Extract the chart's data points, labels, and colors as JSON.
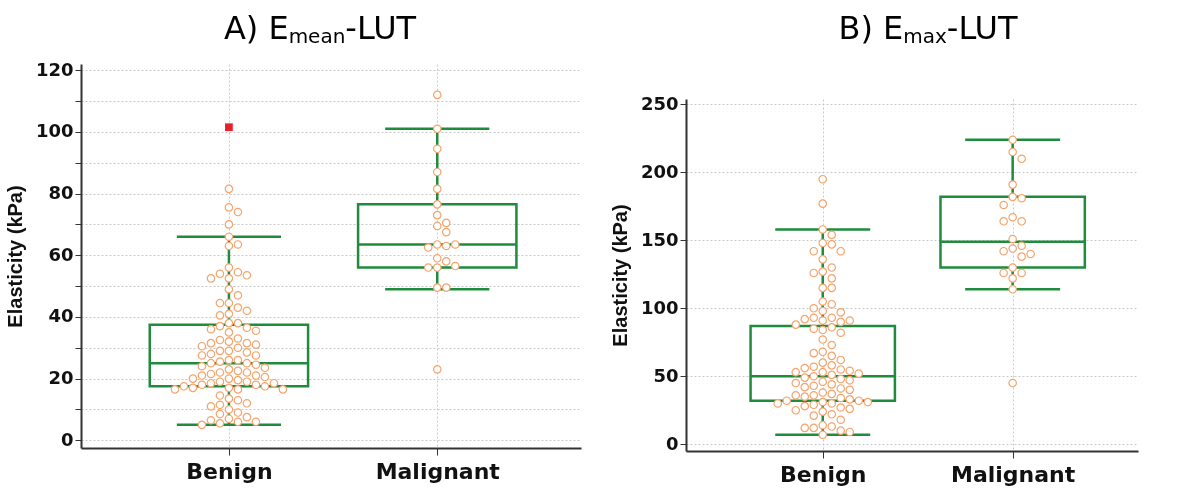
{
  "chart_data": [
    {
      "type": "box",
      "title": "A) E$_{mean}$-LUT",
      "ylabel": "Elasticity (kPa)",
      "categories": [
        "Benign",
        "Malignant"
      ],
      "ylim": [
        -2.5,
        122
      ],
      "yticks": [
        0,
        {
          "value": 10,
          "label": null
        },
        20,
        {
          "value": 30,
          "label": null
        },
        40,
        {
          "value": 50,
          "label": null
        },
        60,
        {
          "value": 70,
          "label": null
        },
        80,
        {
          "value": 90,
          "label": null
        },
        100,
        {
          "value": 110,
          "label": null
        },
        120
      ],
      "grid": true,
      "marker": "circle",
      "series": [
        {
          "type": "box",
          "color": "#1e8c3c",
          "boxes": [
            {
              "low": 5,
              "q1": 17.5,
              "median": 25,
              "q3": 37.5,
              "high": 66,
              "outliers": [
                101.5
              ]
            },
            {
              "low": 49,
              "q1": 56,
              "median": 63.5,
              "q3": 76.5,
              "high": 101
            }
          ]
        },
        {
          "type": "scatter",
          "color": "#f4a46c",
          "x": [
            "Benign",
            "Benign",
            "Benign",
            "Benign",
            "Benign",
            "Benign",
            "Benign",
            "Benign",
            "Benign",
            "Benign",
            "Benign",
            "Benign",
            "Benign",
            "Benign",
            "Benign",
            "Benign",
            "Benign",
            "Benign",
            "Benign",
            "Benign",
            "Benign",
            "Benign",
            "Benign",
            "Benign",
            "Benign",
            "Benign",
            "Benign",
            "Benign",
            "Benign",
            "Benign",
            "Benign",
            "Benign",
            "Benign",
            "Benign",
            "Benign",
            "Benign",
            "Benign",
            "Benign",
            "Benign",
            "Benign",
            "Benign",
            "Benign",
            "Benign",
            "Benign",
            "Benign",
            "Benign",
            "Benign",
            "Benign",
            "Benign",
            "Benign",
            "Benign",
            "Benign",
            "Benign",
            "Benign",
            "Benign",
            "Benign",
            "Benign",
            "Benign",
            "Benign",
            "Benign",
            "Benign",
            "Benign",
            "Benign",
            "Benign",
            "Benign",
            "Benign",
            "Benign",
            "Benign",
            "Benign",
            "Benign",
            "Benign",
            "Benign",
            "Benign",
            "Benign",
            "Benign",
            "Benign",
            "Benign",
            "Benign",
            "Benign",
            "Benign",
            "Benign",
            "Benign",
            "Benign",
            "Benign",
            "Benign",
            "Benign",
            "Benign",
            "Benign",
            "Benign",
            "Benign"
          ],
          "values": [
            81.5,
            75.5,
            74,
            70,
            66,
            63.5,
            63,
            56,
            54.5,
            54,
            53.5,
            52.5,
            52.5,
            49,
            47,
            44.5,
            44.5,
            43,
            42,
            41,
            40.5,
            38,
            38,
            37,
            36.5,
            36,
            35.5,
            35,
            33,
            32.5,
            32,
            31.5,
            31.5,
            31,
            30.5,
            30,
            29,
            29,
            28.5,
            28,
            27.5,
            27.5,
            26,
            26,
            25.5,
            25,
            25,
            24.5,
            24,
            23.5,
            23,
            22.5,
            22,
            22,
            21.5,
            21,
            21,
            20.5,
            20,
            20,
            19.5,
            19,
            19,
            18.5,
            18.5,
            18,
            18,
            17.5,
            17.5,
            17,
            17,
            16.5,
            16.5,
            16.5,
            14.5,
            13.5,
            13,
            12,
            11.5,
            11,
            10,
            9,
            8.5,
            7.5,
            7,
            6.5,
            6,
            6,
            5.5,
            5
          ]
        },
        {
          "type": "scatter",
          "color": "#f4a46c",
          "x": [
            "Malignant",
            "Malignant",
            "Malignant",
            "Malignant",
            "Malignant",
            "Malignant",
            "Malignant",
            "Malignant",
            "Malignant",
            "Malignant",
            "Malignant",
            "Malignant",
            "Malignant",
            "Malignant",
            "Malignant",
            "Malignant",
            "Malignant",
            "Malignant",
            "Malignant",
            "Malignant",
            "Malignant",
            "Malignant"
          ],
          "values": [
            112,
            101,
            94.5,
            87,
            81.5,
            76.5,
            73,
            70.5,
            69.5,
            67.5,
            63.5,
            63,
            62.5,
            63.5,
            59,
            58,
            56,
            56,
            56.5,
            49.5,
            49.5,
            23
          ]
        }
      ]
    },
    {
      "type": "box",
      "title": "B) E$_{max}$-LUT",
      "ylabel": "Elasticity (kPa)",
      "categories": [
        "Benign",
        "Malignant"
      ],
      "ylim": [
        -5,
        254
      ],
      "yticks": [
        0,
        50,
        100,
        150,
        200,
        250
      ],
      "grid": true,
      "marker": "circle",
      "series": [
        {
          "type": "box",
          "color": "#1e8c3c",
          "boxes": [
            {
              "low": 7,
              "q1": 32,
              "median": 50,
              "q3": 87,
              "high": 158
            },
            {
              "low": 114,
              "q1": 130,
              "median": 149,
              "q3": 182,
              "high": 224
            }
          ]
        },
        {
          "type": "scatter",
          "color": "#f4a46c",
          "x": [
            "Benign",
            "Benign",
            "Benign",
            "Benign",
            "Benign",
            "Benign",
            "Benign",
            "Benign",
            "Benign",
            "Benign",
            "Benign",
            "Benign",
            "Benign",
            "Benign",
            "Benign",
            "Benign",
            "Benign",
            "Benign",
            "Benign",
            "Benign",
            "Benign",
            "Benign",
            "Benign",
            "Benign",
            "Benign",
            "Benign",
            "Benign",
            "Benign",
            "Benign",
            "Benign",
            "Benign",
            "Benign",
            "Benign",
            "Benign",
            "Benign",
            "Benign",
            "Benign",
            "Benign",
            "Benign",
            "Benign",
            "Benign",
            "Benign",
            "Benign",
            "Benign",
            "Benign",
            "Benign",
            "Benign",
            "Benign",
            "Benign",
            "Benign",
            "Benign",
            "Benign",
            "Benign",
            "Benign",
            "Benign",
            "Benign",
            "Benign",
            "Benign",
            "Benign",
            "Benign",
            "Benign",
            "Benign",
            "Benign",
            "Benign",
            "Benign",
            "Benign",
            "Benign",
            "Benign",
            "Benign",
            "Benign",
            "Benign",
            "Benign",
            "Benign",
            "Benign",
            "Benign",
            "Benign",
            "Benign",
            "Benign",
            "Benign",
            "Benign",
            "Benign",
            "Benign",
            "Benign",
            "Benign",
            "Benign",
            "Benign",
            "Benign"
          ],
          "values": [
            195,
            177,
            158,
            154,
            148,
            147,
            142,
            142,
            136,
            130,
            127,
            126,
            122,
            115,
            115,
            105,
            103,
            100,
            98,
            97,
            93,
            93,
            92,
            91,
            91,
            90,
            88,
            86,
            85,
            84,
            82,
            77,
            73,
            68,
            67,
            65,
            62,
            60,
            58,
            57,
            56,
            55,
            54,
            53,
            53,
            52,
            51,
            50,
            49,
            48,
            47,
            46,
            45,
            44,
            43,
            42,
            41,
            40,
            38,
            37,
            36,
            36,
            35,
            34,
            33,
            32,
            32,
            31,
            31,
            30,
            30,
            29,
            28,
            27,
            26,
            25,
            24,
            22,
            21,
            18,
            14,
            13,
            12,
            12,
            10,
            9,
            7
          ]
        },
        {
          "type": "scatter",
          "color": "#f4a46c",
          "x": [
            "Malignant",
            "Malignant",
            "Malignant",
            "Malignant",
            "Malignant",
            "Malignant",
            "Malignant",
            "Malignant",
            "Malignant",
            "Malignant",
            "Malignant",
            "Malignant",
            "Malignant",
            "Malignant",
            "Malignant",
            "Malignant",
            "Malignant",
            "Malignant",
            "Malignant",
            "Malignant",
            "Malignant",
            "Malignant"
          ],
          "values": [
            224,
            215,
            210,
            191,
            182,
            181,
            176,
            167,
            164,
            164,
            151,
            146,
            144,
            142,
            140,
            138,
            130,
            126,
            126,
            122,
            114,
            45
          ]
        }
      ]
    }
  ]
}
